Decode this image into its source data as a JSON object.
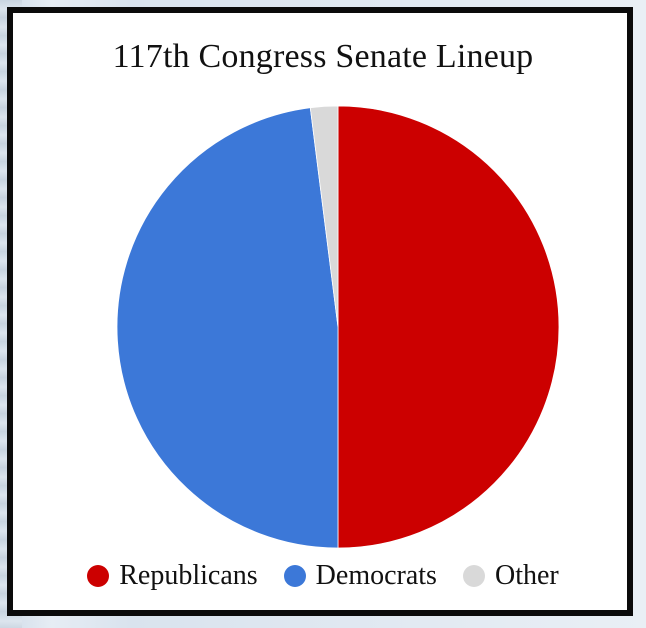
{
  "chart_data": {
    "type": "pie",
    "title": "117th Congress Senate Lineup",
    "series": [
      {
        "name": "Republicans",
        "value": 50,
        "color": "#cc0000"
      },
      {
        "name": "Democrats",
        "value": 48,
        "color": "#3c78d8"
      },
      {
        "name": "Other",
        "value": 2,
        "color": "#d9d9d9"
      }
    ],
    "legend_position": "bottom",
    "start_angle_deg": 0,
    "direction": "clockwise"
  }
}
